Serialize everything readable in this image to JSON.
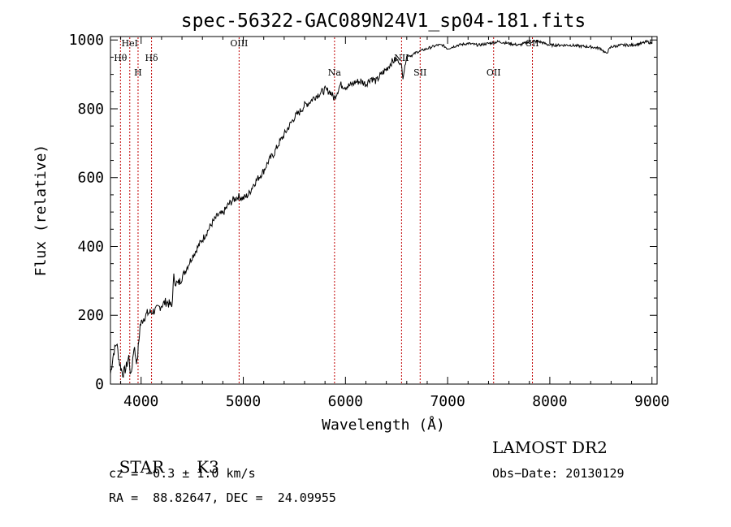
{
  "chart_data": {
    "type": "line",
    "title": "spec-56322-GAC089N24V1_sp04-181.fits",
    "xlabel": "Wavelength (Å)",
    "ylabel": "Flux (relative)",
    "xlim": [
      3700,
      9050
    ],
    "ylim": [
      0,
      1010
    ],
    "xticks": [
      4000,
      5000,
      6000,
      7000,
      8000,
      9000
    ],
    "yticks": [
      0,
      200,
      400,
      600,
      800,
      1000
    ],
    "grid": false,
    "series": [
      {
        "x": [
          3700,
          3730,
          3760,
          3790,
          3820,
          3850,
          3880,
          3900,
          3930,
          3960,
          3990,
          4020,
          4060,
          4100,
          4150,
          4200,
          4250,
          4300,
          4320,
          4340,
          4360,
          4400,
          4450,
          4500,
          4550,
          4600,
          4650,
          4700,
          4750,
          4800,
          4850,
          4900,
          4950,
          5000,
          5050,
          5100,
          5150,
          5200,
          5250,
          5300,
          5350,
          5400,
          5450,
          5500,
          5550,
          5600,
          5650,
          5700,
          5750,
          5800,
          5850,
          5890,
          5950,
          6000,
          6050,
          6100,
          6150,
          6200,
          6250,
          6300,
          6350,
          6400,
          6450,
          6500,
          6550,
          6563,
          6600,
          6650,
          6700,
          6750,
          6800,
          6850,
          6900,
          6950,
          7000,
          7100,
          7200,
          7300,
          7400,
          7500,
          7600,
          7700,
          7800,
          7900,
          8000,
          8100,
          8200,
          8300,
          8400,
          8500,
          8550,
          8600,
          8700,
          8800,
          8900,
          8950,
          9000
        ],
        "values": [
          30,
          90,
          120,
          60,
          30,
          45,
          80,
          20,
          110,
          60,
          170,
          190,
          205,
          210,
          215,
          230,
          240,
          225,
          310,
          295,
          290,
          310,
          340,
          370,
          395,
          420,
          445,
          470,
          490,
          495,
          520,
          535,
          545,
          540,
          550,
          580,
          600,
          620,
          650,
          670,
          700,
          725,
          750,
          775,
          790,
          810,
          820,
          835,
          845,
          855,
          850,
          830,
          870,
          865,
          868,
          878,
          880,
          872,
          890,
          880,
          900,
          915,
          935,
          945,
          925,
          890,
          955,
          955,
          965,
          970,
          975,
          980,
          985,
          985,
          975,
          985,
          990,
          985,
          990,
          995,
          990,
          985,
          995,
          995,
          985,
          985,
          985,
          982,
          980,
          975,
          960,
          980,
          985,
          985,
          990,
          995,
          990
        ]
      }
    ],
    "lines": [
      {
        "label": "Hθ",
        "x": 3798
      },
      {
        "label": "HeI",
        "x": 3889
      },
      {
        "label": "H",
        "x": 3970
      },
      {
        "label": "Hδ",
        "x": 4102
      },
      {
        "label": "OIII",
        "x": 4959
      },
      {
        "label": "Na",
        "x": 5893
      },
      {
        "label": "NII",
        "x": 6549
      },
      {
        "label": "SII",
        "x": 6731
      },
      {
        "label": "OII",
        "x": 7450
      },
      {
        "label": "SII",
        "x": 7830
      }
    ]
  },
  "info": {
    "class": "STAR",
    "subclass": "K3",
    "survey": "LAMOST DR2",
    "cz": "cz = −0.3 ± 1.0 km/s",
    "obs_date": "Obs−Date: 20130129",
    "coords": "RA =  88.82647, DEC =  24.09955"
  }
}
